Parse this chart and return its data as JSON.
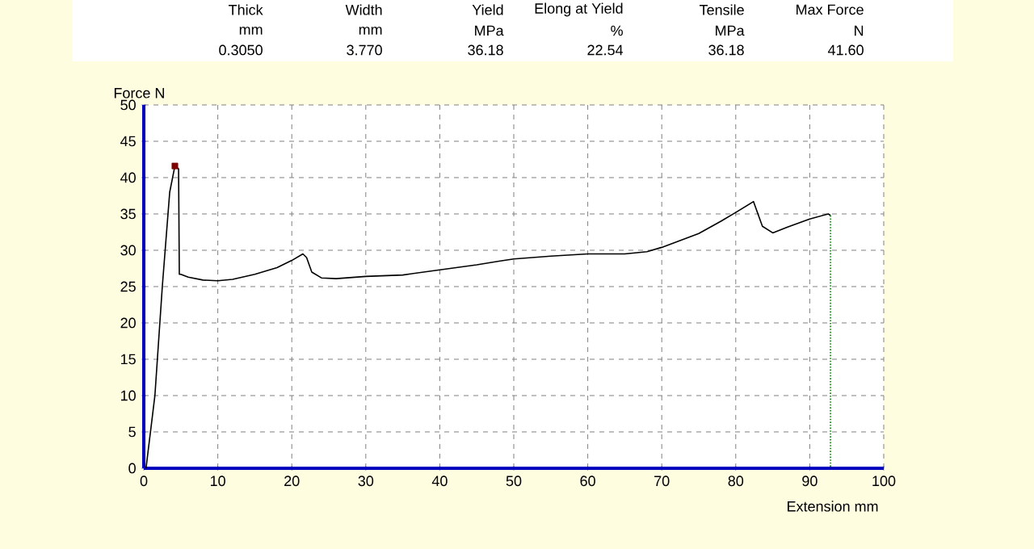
{
  "chart_data": {
    "type": "line",
    "xlabel": "Extension mm",
    "ylabel": "Force N",
    "annotations": [
      "Thick",
      "Width",
      "Yield",
      "Elong at Yield",
      "Tensile",
      "Max Force",
      "mm",
      "mm",
      "MPa",
      "%",
      "MPa",
      "N",
      "0.3050",
      "3.770",
      "36.18",
      "22.54",
      "36.18",
      "41.60"
    ],
    "xlim": [
      0,
      100
    ],
    "ylim": [
      0,
      50
    ],
    "xticks": [
      0,
      10,
      20,
      30,
      40,
      50,
      60,
      70,
      80,
      90,
      100
    ],
    "yticks": [
      0,
      5,
      10,
      15,
      20,
      25,
      30,
      35,
      40,
      45,
      50
    ],
    "grid": true,
    "series": [
      {
        "color": "#000000",
        "marker": "none",
        "line_style": "solid",
        "x": [
          0.3,
          1.5,
          2.5,
          3.5,
          4.2,
          4.7,
          4.8,
          5,
          6,
          8,
          10,
          12,
          15,
          18,
          20,
          21.5,
          22,
          22.7,
          24,
          26,
          30,
          35,
          40,
          45,
          48,
          50,
          55,
          60,
          65,
          68,
          70,
          75,
          78,
          80,
          82.4,
          83,
          83.6,
          85,
          87,
          90,
          92.5,
          92.8
        ],
        "values": [
          0,
          10,
          25,
          38,
          41.6,
          41.2,
          26.7,
          26.7,
          26.3,
          25.9,
          25.8,
          26.0,
          26.7,
          27.6,
          28.6,
          29.5,
          29.0,
          27,
          26.2,
          26.1,
          26.4,
          26.6,
          27.3,
          28.0,
          28.5,
          28.8,
          29.2,
          29.5,
          29.5,
          29.8,
          30.4,
          32.3,
          34,
          35.2,
          36.7,
          35,
          33.3,
          32.4,
          33.2,
          34.3,
          35.0,
          34.8
        ]
      },
      {
        "type": "line",
        "color": "#008000",
        "marker": "none",
        "line_style": "dotted",
        "x": [
          92.8,
          92.8
        ],
        "values": [
          34.8,
          0
        ]
      },
      {
        "type": "scatter",
        "color": "#800000",
        "marker": "square",
        "x": [
          4.2
        ],
        "values": [
          41.6
        ]
      }
    ]
  }
}
